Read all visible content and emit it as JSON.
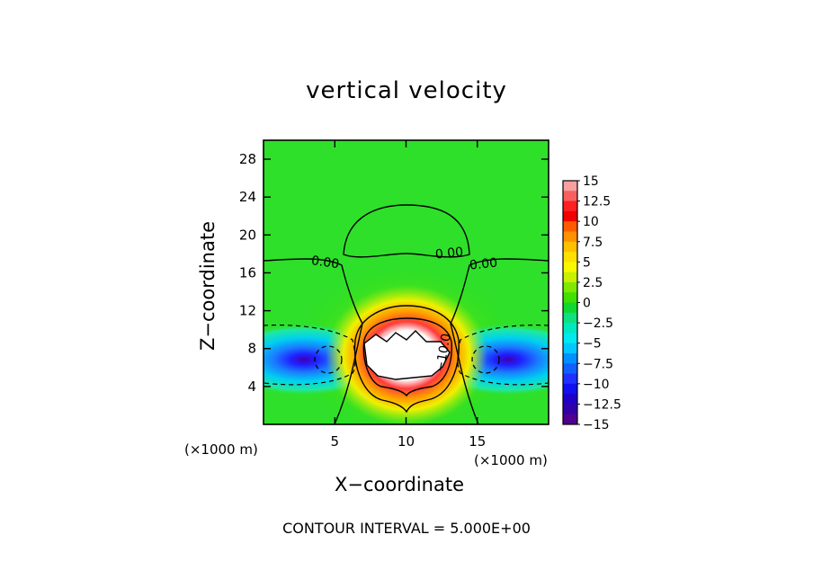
{
  "chart_data": {
    "type": "heatmap",
    "title": "vertical velocity",
    "xlabel": "X−coordinate",
    "ylabel": "Z−coordinate",
    "x_unit_label": "(×1000 m)",
    "y_unit_label": "(×1000 m)",
    "xlim": [
      0,
      20
    ],
    "ylim": [
      0,
      30
    ],
    "x_ticks": [
      "5",
      "10",
      "15"
    ],
    "x_tick_values": [
      5,
      10,
      15
    ],
    "y_ticks": [
      "4",
      "8",
      "12",
      "16",
      "20",
      "24",
      "28"
    ],
    "y_tick_values": [
      4,
      8,
      12,
      16,
      20,
      24,
      28
    ],
    "colorbar": {
      "labels": [
        "15",
        "12.5",
        "10",
        "7.5",
        "5",
        "2.5",
        "0",
        "−2.5",
        "−5",
        "−7.5",
        "−10",
        "−12.5",
        "−15"
      ],
      "levels": [
        15,
        12.5,
        10,
        7.5,
        5,
        2.5,
        0,
        -2.5,
        -5,
        -7.5,
        -10,
        -12.5,
        -15
      ],
      "range": [
        -15,
        15
      ]
    },
    "contour_labels": [
      "0.00",
      "0.00",
      "0.00",
      "−10.0"
    ],
    "contour_interval_text": "CONTOUR INTERVAL = 5.000E+00",
    "features": {
      "updraft_core": {
        "x": 10,
        "z": 7,
        "peak": 15
      },
      "downdrafts": [
        {
          "x": 4.5,
          "z": 7,
          "min": -15
        },
        {
          "x": 15.5,
          "z": 7,
          "min": -15
        }
      ],
      "upper_dome_contour_top_z": 23
    }
  }
}
